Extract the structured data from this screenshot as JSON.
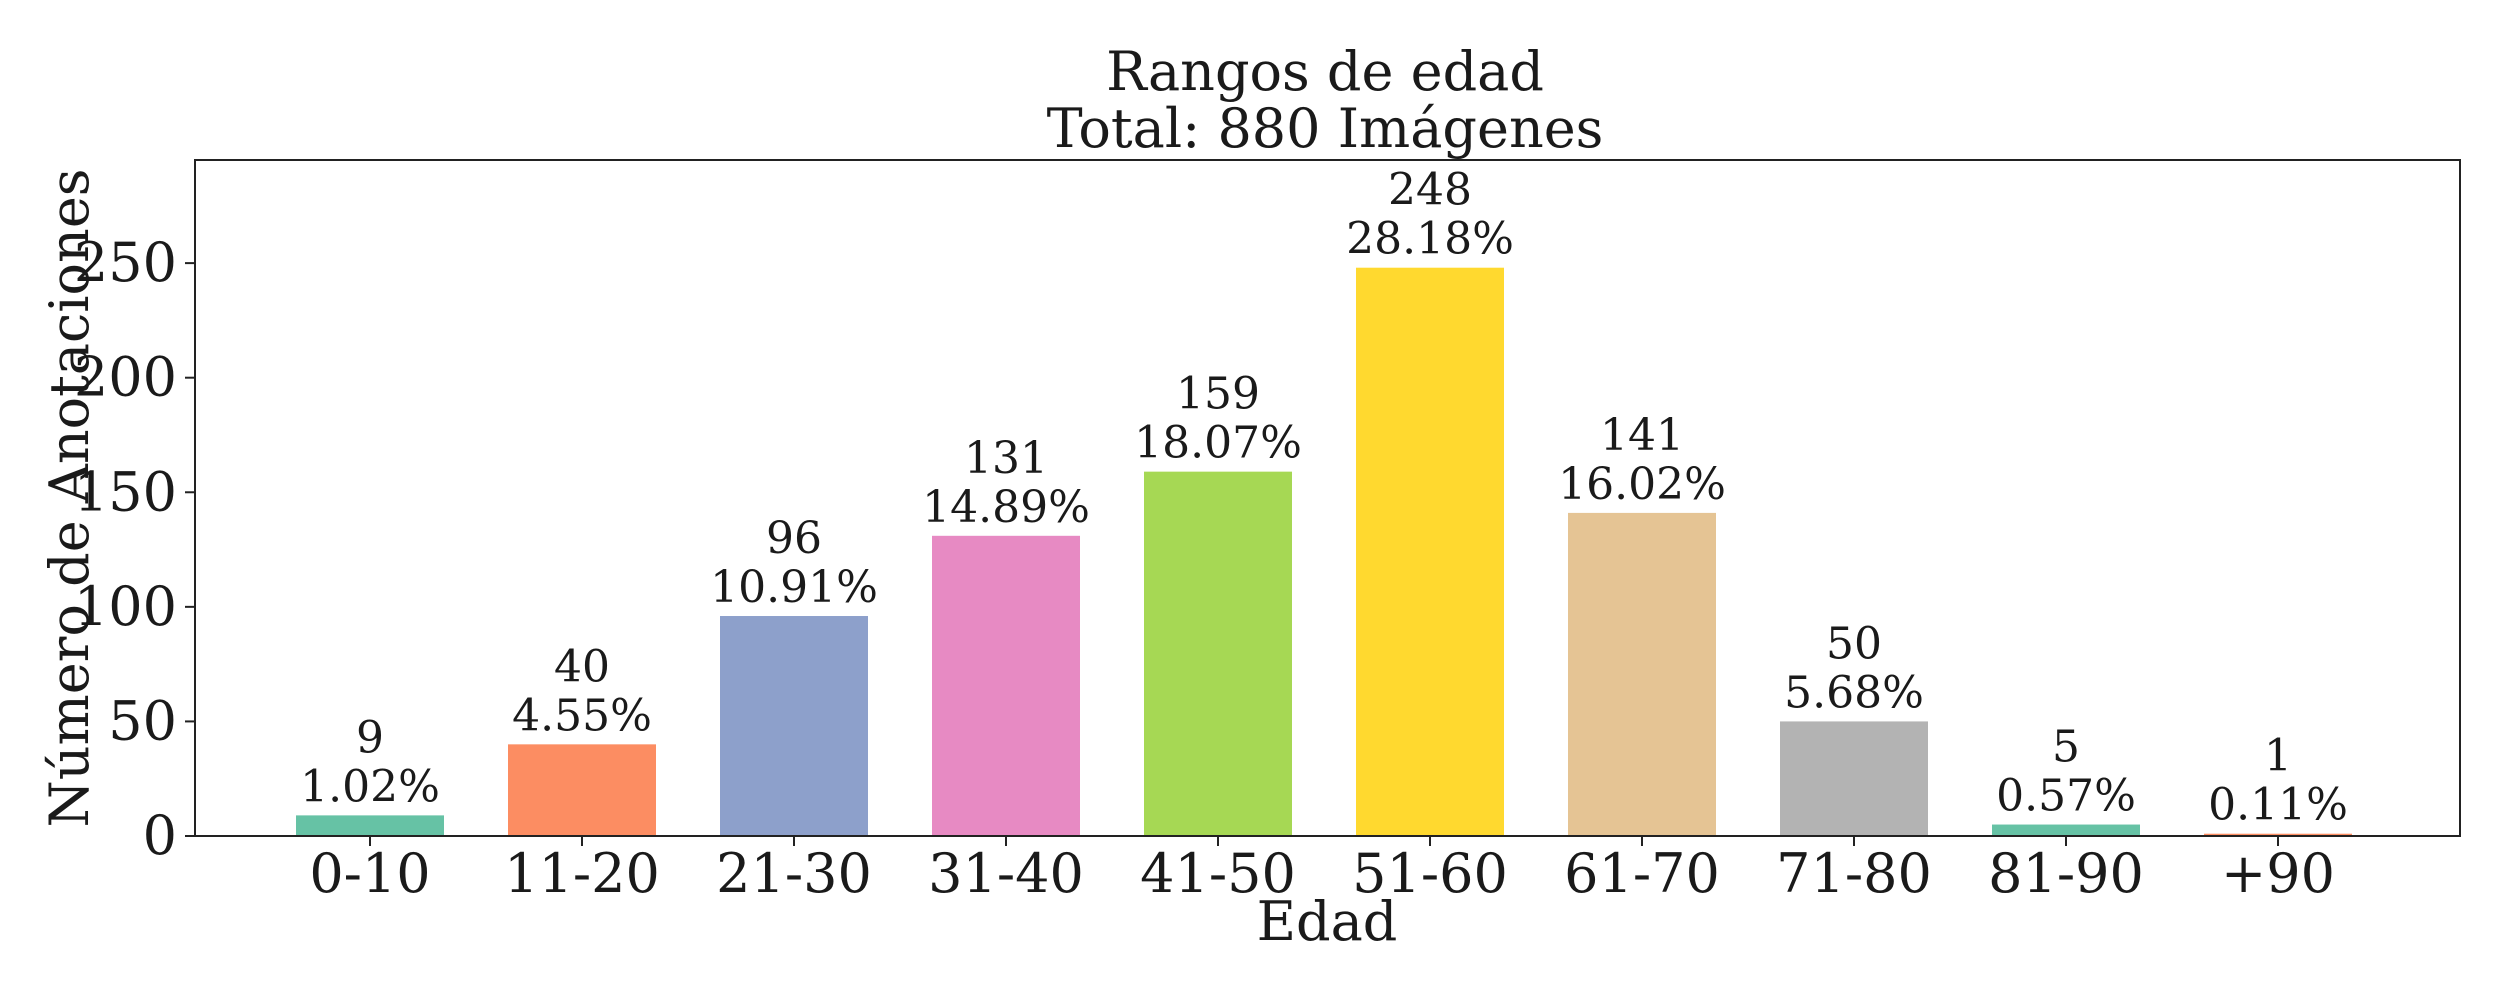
{
  "chart_data": {
    "type": "bar",
    "title": "Rangos de edad",
    "subtitle": "Total: 880 Imágenes",
    "xlabel": "Edad",
    "ylabel": "Número de Anotaciones",
    "ylim": [
      0,
      295
    ],
    "yticks": [
      "0",
      "50",
      "100",
      "150",
      "200",
      "250"
    ],
    "grid": false,
    "categories": [
      "0-10",
      "11-20",
      "21-30",
      "31-40",
      "41-50",
      "51-60",
      "61-70",
      "71-80",
      "81-90",
      "+90"
    ],
    "values": [
      9,
      40,
      96,
      131,
      159,
      248,
      141,
      50,
      5,
      1
    ],
    "value_labels": [
      "9",
      "40",
      "96",
      "131",
      "159",
      "248",
      "141",
      "50",
      "5",
      "1"
    ],
    "percent_labels": [
      "1.02%",
      "4.55%",
      "10.91%",
      "14.89%",
      "18.07%",
      "28.18%",
      "16.02%",
      "5.68%",
      "0.57%",
      "0.11%"
    ],
    "colors": [
      "#66c2a5",
      "#fc8d62",
      "#8da0cb",
      "#e78ac3",
      "#a6d854",
      "#ffd92f",
      "#e5c494",
      "#b3b3b3",
      "#66c2a5",
      "#fc8d62"
    ]
  }
}
